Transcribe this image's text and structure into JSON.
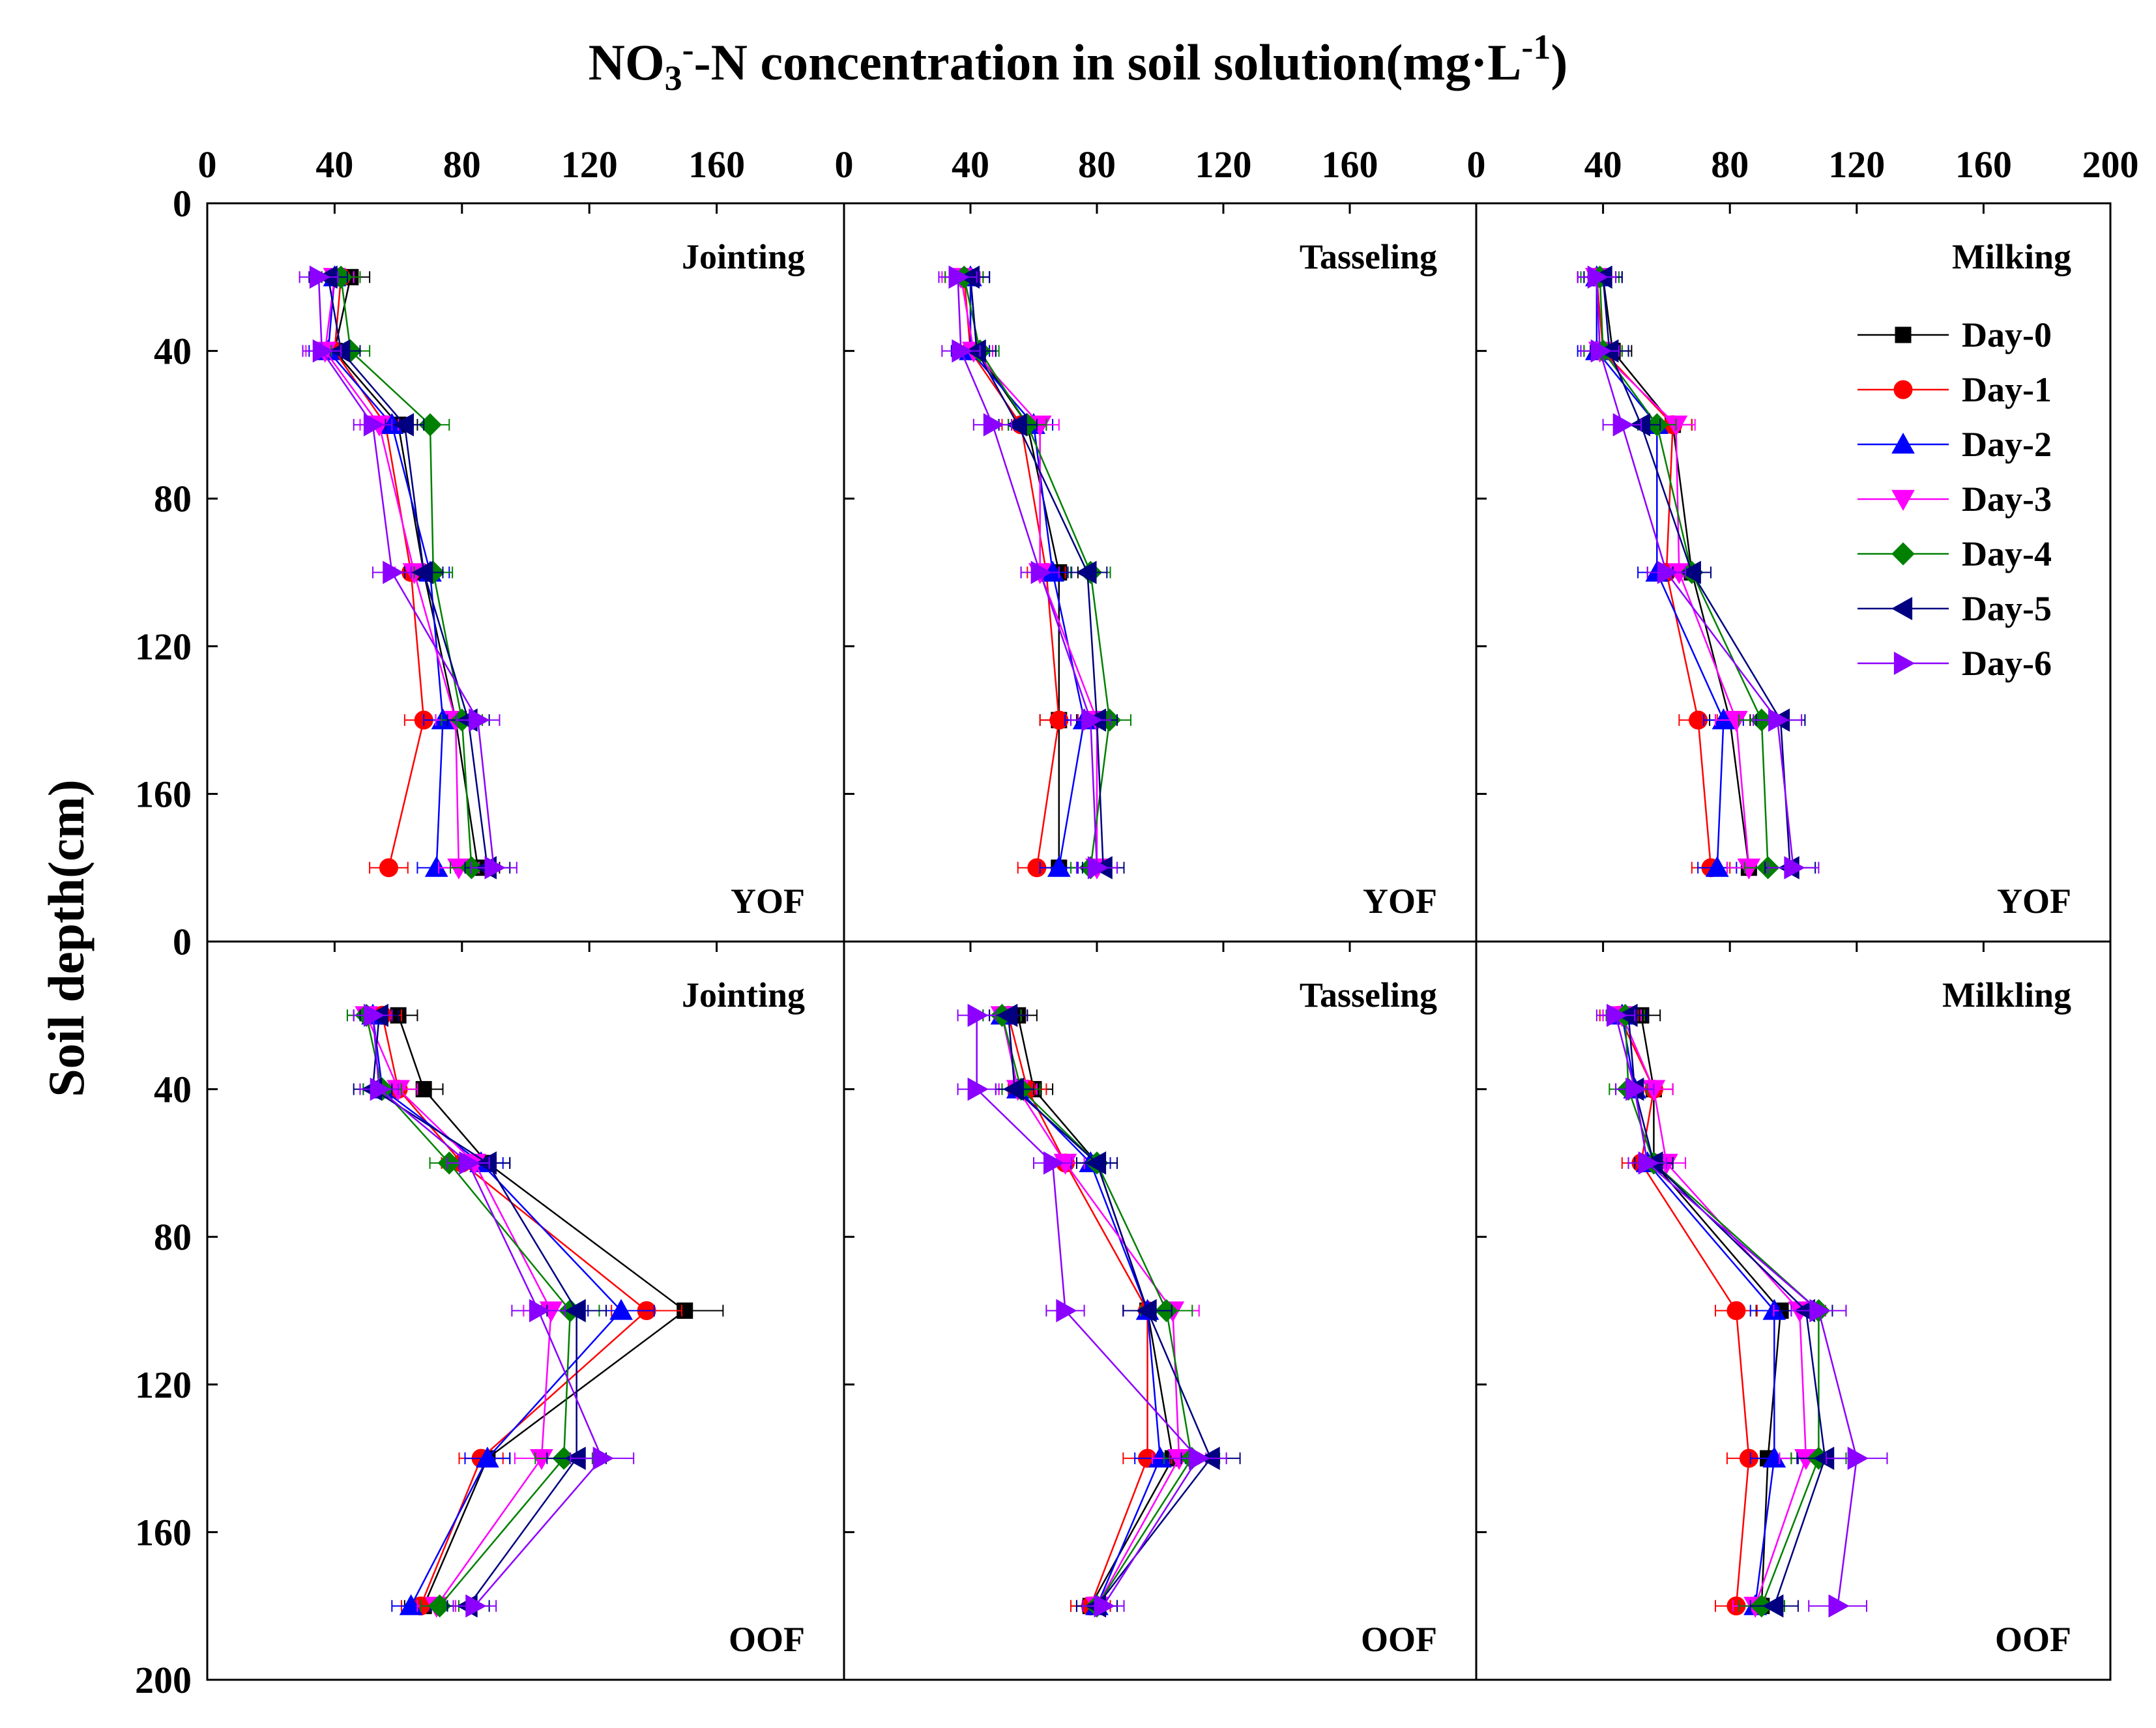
{
  "figure": {
    "x_title": {
      "pre": "NO",
      "sub": "3",
      "sup": "-",
      "mid": "-N concentration in soil solution(mg·L",
      "sup2": "-1",
      "post": ")"
    },
    "y_title": "Soil depth(cm)"
  },
  "legend": [
    "Day-0",
    "Day-1",
    "Day-2",
    "Day-3",
    "Day-4",
    "Day-5",
    "Day-6"
  ],
  "colors": [
    "#000000",
    "#ff0000",
    "#0000ff",
    "#ff00ff",
    "#008000",
    "#000080",
    "#8b00ff"
  ],
  "chart_data": [
    {
      "type": "line",
      "stage": "Jointing",
      "site": "YOF",
      "x_ticks": [
        "0",
        "40",
        "80",
        "120",
        "160"
      ],
      "y_ticks": [
        "0",
        "40",
        "80",
        "120",
        "160"
      ],
      "xlim": [
        0,
        200
      ],
      "ylim": [
        200,
        0
      ],
      "depths": [
        20,
        40,
        60,
        100,
        140,
        180
      ],
      "series": [
        {
          "name": "Day-0",
          "values": [
            45,
            40,
            60,
            68,
            78,
            85
          ]
        },
        {
          "name": "Day-1",
          "values": [
            42,
            40,
            56,
            64,
            68,
            57
          ]
        },
        {
          "name": "Day-2",
          "values": [
            40,
            38,
            58,
            70,
            74,
            72
          ]
        },
        {
          "name": "Day-3",
          "values": [
            40,
            37,
            54,
            65,
            78,
            79
          ]
        },
        {
          "name": "Day-4",
          "values": [
            42,
            45,
            70,
            71,
            80,
            83
          ]
        },
        {
          "name": "Day-5",
          "values": [
            38,
            42,
            62,
            68,
            82,
            88
          ]
        },
        {
          "name": "Day-6",
          "values": [
            35,
            36,
            52,
            58,
            85,
            90
          ]
        }
      ]
    },
    {
      "type": "line",
      "stage": "Tasseling",
      "site": "YOF",
      "x_ticks": [
        "0",
        "40",
        "80",
        "120",
        "160"
      ],
      "y_ticks": [],
      "xlim": [
        0,
        200
      ],
      "ylim": [
        200,
        0
      ],
      "depths": [
        20,
        40,
        60,
        100,
        140,
        180
      ],
      "series": [
        {
          "name": "Day-0",
          "values": [
            40,
            42,
            58,
            68,
            68,
            68
          ]
        },
        {
          "name": "Day-1",
          "values": [
            38,
            40,
            56,
            64,
            68,
            61
          ]
        },
        {
          "name": "Day-2",
          "values": [
            40,
            40,
            60,
            66,
            76,
            68
          ]
        },
        {
          "name": "Day-3",
          "values": [
            37,
            41,
            62,
            62,
            80,
            80
          ]
        },
        {
          "name": "Day-4",
          "values": [
            38,
            43,
            58,
            78,
            84,
            78
          ]
        },
        {
          "name": "Day-5",
          "values": [
            40,
            42,
            55,
            77,
            80,
            82
          ]
        },
        {
          "name": "Day-6",
          "values": [
            36,
            37,
            47,
            62,
            78,
            80
          ]
        }
      ]
    },
    {
      "type": "line",
      "stage": "Milking",
      "site": "YOF",
      "x_ticks": [
        "0",
        "40",
        "80",
        "120",
        "160",
        "200"
      ],
      "y_ticks": [],
      "xlim": [
        0,
        200
      ],
      "ylim": [
        200,
        0
      ],
      "depths": [
        20,
        40,
        60,
        100,
        140,
        180
      ],
      "series": [
        {
          "name": "Day-0",
          "values": [
            40,
            43,
            62,
            68,
            80,
            86
          ]
        },
        {
          "name": "Day-1",
          "values": [
            38,
            40,
            62,
            60,
            70,
            74
          ]
        },
        {
          "name": "Day-2",
          "values": [
            38,
            38,
            57,
            57,
            78,
            76
          ]
        },
        {
          "name": "Day-3",
          "values": [
            38,
            39,
            63,
            64,
            82,
            86
          ]
        },
        {
          "name": "Day-4",
          "values": [
            39,
            40,
            57,
            68,
            90,
            92
          ]
        },
        {
          "name": "Day-5",
          "values": [
            40,
            42,
            52,
            68,
            96,
            99
          ]
        },
        {
          "name": "Day-6",
          "values": [
            38,
            39,
            46,
            60,
            95,
            100
          ]
        }
      ]
    },
    {
      "type": "line",
      "stage": "Jointing",
      "site": "OOF",
      "x_ticks": [],
      "y_ticks": [
        "0",
        "40",
        "80",
        "120",
        "160",
        "200"
      ],
      "xlim": [
        0,
        200
      ],
      "ylim": [
        200,
        0
      ],
      "depths": [
        20,
        40,
        60,
        100,
        140,
        180
      ],
      "series": [
        {
          "name": "Day-0",
          "values": [
            60,
            68,
            88,
            150,
            88,
            68
          ]
        },
        {
          "name": "Day-1",
          "values": [
            55,
            60,
            80,
            138,
            86,
            67
          ]
        },
        {
          "name": "Day-2",
          "values": [
            52,
            55,
            86,
            130,
            88,
            64
          ]
        },
        {
          "name": "Day-3",
          "values": [
            50,
            60,
            84,
            108,
            105,
            72
          ]
        },
        {
          "name": "Day-4",
          "values": [
            50,
            55,
            76,
            114,
            112,
            73
          ]
        },
        {
          "name": "Day-5",
          "values": [
            54,
            52,
            88,
            116,
            116,
            82
          ]
        },
        {
          "name": "Day-6",
          "values": [
            52,
            54,
            82,
            104,
            124,
            84
          ]
        }
      ]
    },
    {
      "type": "line",
      "stage": "Tasseling",
      "site": "OOF",
      "x_ticks": [],
      "y_ticks": [],
      "xlim": [
        0,
        200
      ],
      "ylim": [
        200,
        0
      ],
      "depths": [
        20,
        40,
        60,
        100,
        140,
        180
      ],
      "series": [
        {
          "name": "Day-0",
          "values": [
            55,
            60,
            80,
            96,
            104,
            78
          ]
        },
        {
          "name": "Day-1",
          "values": [
            52,
            58,
            70,
            96,
            96,
            78
          ]
        },
        {
          "name": "Day-2",
          "values": [
            50,
            55,
            78,
            96,
            100,
            80
          ]
        },
        {
          "name": "Day-3",
          "values": [
            50,
            55,
            70,
            104,
            106,
            80
          ]
        },
        {
          "name": "Day-4",
          "values": [
            50,
            56,
            80,
            102,
            110,
            80
          ]
        },
        {
          "name": "Day-5",
          "values": [
            52,
            54,
            80,
            96,
            116,
            80
          ]
        },
        {
          "name": "Day-6",
          "values": [
            42,
            42,
            66,
            70,
            112,
            82
          ]
        }
      ]
    },
    {
      "type": "line",
      "stage": "Milkling",
      "site": "OOF",
      "x_ticks": [],
      "y_ticks": [],
      "xlim": [
        0,
        200
      ],
      "ylim": [
        200,
        0
      ],
      "depths": [
        20,
        40,
        60,
        100,
        140,
        180
      ],
      "series": [
        {
          "name": "Day-0",
          "values": [
            52,
            56,
            56,
            96,
            92,
            90
          ]
        },
        {
          "name": "Day-1",
          "values": [
            45,
            56,
            52,
            82,
            86,
            82
          ]
        },
        {
          "name": "Day-2",
          "values": [
            46,
            50,
            54,
            94,
            94,
            88
          ]
        },
        {
          "name": "Day-3",
          "values": [
            46,
            56,
            60,
            102,
            104,
            88
          ]
        },
        {
          "name": "Day-4",
          "values": [
            47,
            48,
            56,
            108,
            108,
            90
          ]
        },
        {
          "name": "Day-5",
          "values": [
            48,
            50,
            56,
            104,
            110,
            94
          ]
        },
        {
          "name": "Day-6",
          "values": [
            44,
            50,
            54,
            108,
            120,
            114
          ]
        }
      ]
    }
  ]
}
